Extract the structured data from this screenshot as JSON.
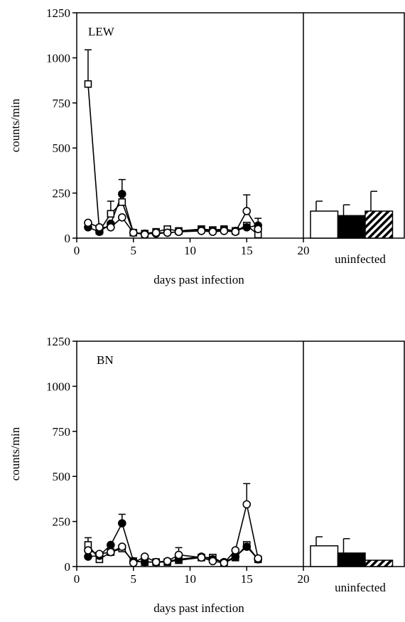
{
  "chart_data": [
    {
      "type": "line",
      "title": "LEW",
      "xlabel": "days past infection",
      "ylabel": "counts/min",
      "x": [
        1,
        2,
        3,
        4,
        5,
        6,
        7,
        8,
        9,
        11,
        12,
        13,
        14,
        15,
        16
      ],
      "xlim": [
        0,
        20
      ],
      "xticks": [
        0,
        5,
        10,
        15,
        20
      ],
      "ylim": [
        0,
        1250
      ],
      "yticks": [
        0,
        250,
        500,
        750,
        1000,
        1250
      ],
      "series": [
        {
          "marker": "square-open",
          "color": "#000000",
          "values": [
            855,
            40,
            135,
            200,
            30,
            25,
            35,
            50,
            40,
            50,
            45,
            50,
            40,
            70,
            20
          ],
          "errors": [
            190,
            null,
            70,
            null,
            null,
            null,
            null,
            null,
            null,
            null,
            null,
            null,
            null,
            null,
            null
          ]
        },
        {
          "marker": "circle-filled",
          "color": "#000000",
          "values": [
            60,
            35,
            80,
            245,
            30,
            25,
            25,
            30,
            35,
            45,
            40,
            45,
            40,
            60,
            70
          ],
          "errors": [
            null,
            null,
            null,
            80,
            null,
            null,
            null,
            null,
            null,
            null,
            null,
            null,
            null,
            null,
            40
          ]
        },
        {
          "marker": "circle-open",
          "color": "#000000",
          "values": [
            85,
            60,
            60,
            115,
            30,
            20,
            30,
            30,
            35,
            40,
            35,
            40,
            35,
            150,
            50
          ],
          "errors": [
            null,
            null,
            null,
            null,
            null,
            null,
            null,
            null,
            null,
            null,
            null,
            null,
            null,
            90,
            null
          ]
        }
      ],
      "uninfected": {
        "label": "uninfected",
        "values": [
          150,
          125,
          150
        ],
        "errors": [
          55,
          60,
          110
        ],
        "fills": [
          "#ffffff",
          "#000000",
          "hatch"
        ]
      }
    },
    {
      "type": "line",
      "title": "BN",
      "xlabel": "days past infection",
      "ylabel": "counts/min",
      "x": [
        1,
        2,
        3,
        4,
        5,
        6,
        7,
        8,
        9,
        11,
        12,
        13,
        14,
        15,
        16
      ],
      "xlim": [
        0,
        20
      ],
      "xticks": [
        0,
        5,
        10,
        15,
        20
      ],
      "ylim": [
        0,
        1250
      ],
      "yticks": [
        0,
        250,
        500,
        750,
        1000,
        1250
      ],
      "series": [
        {
          "marker": "square-open",
          "color": "#000000",
          "values": [
            120,
            40,
            80,
            100,
            30,
            25,
            25,
            25,
            35,
            50,
            50,
            20,
            50,
            120,
            40
          ],
          "errors": [
            40,
            null,
            null,
            null,
            null,
            null,
            null,
            null,
            null,
            null,
            null,
            null,
            null,
            null,
            null
          ]
        },
        {
          "marker": "circle-filled",
          "color": "#000000",
          "values": [
            55,
            60,
            120,
            240,
            30,
            25,
            25,
            30,
            40,
            55,
            40,
            25,
            55,
            110,
            40
          ],
          "errors": [
            null,
            null,
            null,
            50,
            null,
            null,
            null,
            null,
            65,
            null,
            null,
            null,
            null,
            null,
            null
          ]
        },
        {
          "marker": "circle-open",
          "color": "#000000",
          "values": [
            90,
            70,
            80,
            110,
            20,
            55,
            25,
            30,
            65,
            50,
            30,
            20,
            90,
            345,
            45
          ],
          "errors": [
            null,
            null,
            null,
            null,
            null,
            null,
            null,
            null,
            null,
            null,
            null,
            null,
            null,
            115,
            null
          ]
        }
      ],
      "uninfected": {
        "label": "uninfected",
        "values": [
          115,
          75,
          35
        ],
        "errors": [
          50,
          80,
          null
        ],
        "fills": [
          "#ffffff",
          "#000000",
          "hatch"
        ]
      }
    }
  ]
}
